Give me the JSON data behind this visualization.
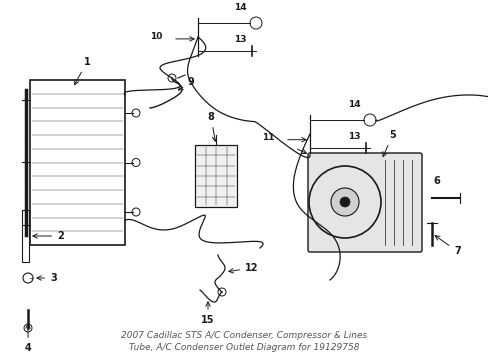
{
  "bg_color": "#ffffff",
  "line_color": "#1a1a1a",
  "title": "2007 Cadillac STS A/C Condenser, Compressor & Lines\nTube, A/C Condenser Outlet Diagram for 19129758",
  "title_fontsize": 6.5,
  "figsize": [
    4.89,
    3.6
  ],
  "dpi": 100
}
